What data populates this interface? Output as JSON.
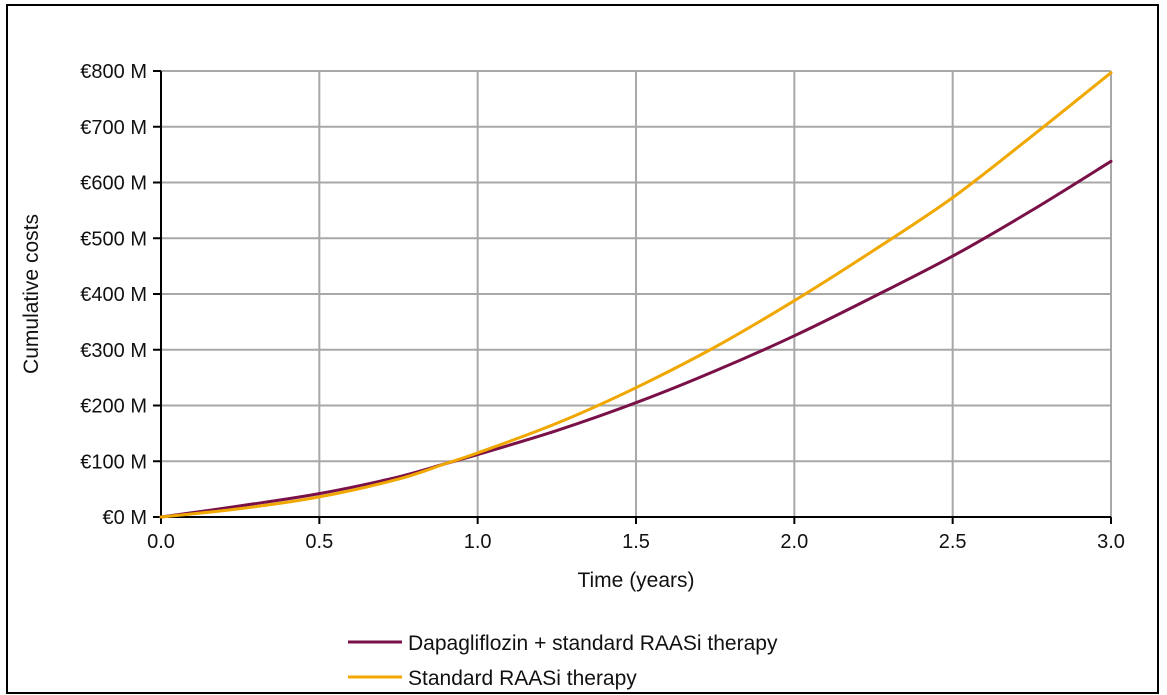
{
  "chart_data": {
    "type": "line",
    "xlabel": "Time (years)",
    "ylabel": "Cumulative costs",
    "xlim": [
      0,
      3
    ],
    "ylim": [
      0,
      800
    ],
    "x_ticks": [
      "0.0",
      "0.5",
      "1.0",
      "1.5",
      "2.0",
      "2.5",
      "3.0"
    ],
    "y_ticks": [
      "€0 M",
      "€100 M",
      "€200 M",
      "€300 M",
      "€400 M",
      "€500 M",
      "€600 M",
      "€700 M",
      "€800 M"
    ],
    "grid": true,
    "legend_position": "bottom",
    "series": [
      {
        "name": "Dapagliflozin + standard RAASi therapy",
        "color": "#7a1048",
        "x": [
          0,
          0.25,
          0.5,
          0.75,
          0.9,
          1.0,
          1.25,
          1.5,
          1.75,
          2.0,
          2.25,
          2.5,
          2.75,
          3.0
        ],
        "y": [
          0,
          20,
          42,
          72,
          96,
          112,
          155,
          205,
          262,
          325,
          395,
          468,
          550,
          638
        ]
      },
      {
        "name": "Standard RAASi therapy",
        "color": "#f0a800",
        "x": [
          0,
          0.25,
          0.5,
          0.75,
          0.9,
          1.0,
          1.25,
          1.5,
          1.75,
          2.0,
          2.25,
          2.5,
          2.75,
          3.0
        ],
        "y": [
          0,
          15,
          36,
          68,
          96,
          115,
          168,
          232,
          305,
          388,
          478,
          573,
          683,
          797
        ]
      }
    ]
  }
}
